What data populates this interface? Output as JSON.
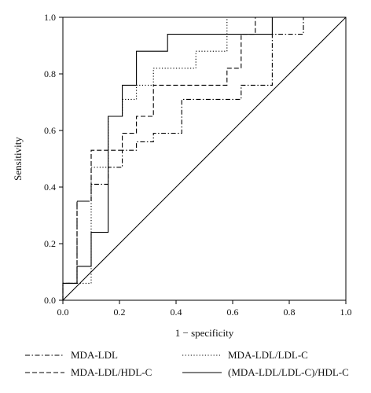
{
  "chart_data": {
    "type": "line",
    "xlabel": "1 − specificity",
    "ylabel": "Sensitivity",
    "xlim": [
      0,
      1
    ],
    "ylim": [
      0,
      1
    ],
    "x_ticks": [
      "0.0",
      "0.2",
      "0.4",
      "0.6",
      "0.8",
      "1.0"
    ],
    "y_ticks": [
      "0.0",
      "0.2",
      "0.4",
      "0.6",
      "0.8",
      "1.0"
    ],
    "grid": false,
    "legend_position": "bottom",
    "diagonal": {
      "x": [
        0,
        1
      ],
      "y": [
        0,
        1
      ],
      "color": "#000000"
    },
    "series": [
      {
        "name": "MDA-LDL",
        "dash": "dashdot",
        "color": "#000000",
        "x": [
          0,
          0,
          0.05,
          0.05,
          0.1,
          0.1,
          0.16,
          0.16,
          0.21,
          0.21,
          0.26,
          0.26,
          0.32,
          0.32,
          0.42,
          0.42,
          0.63,
          0.63,
          0.74,
          0.74,
          0.85,
          0.85,
          1.0
        ],
        "y": [
          0,
          0.06,
          0.06,
          0.35,
          0.35,
          0.41,
          0.41,
          0.47,
          0.47,
          0.53,
          0.53,
          0.56,
          0.56,
          0.59,
          0.59,
          0.71,
          0.71,
          0.76,
          0.76,
          0.94,
          0.94,
          1.0,
          1.0
        ]
      },
      {
        "name": "MDA-LDL/LDL-C",
        "dash": "dotted",
        "color": "#000000",
        "x": [
          0,
          0,
          0.05,
          0.05,
          0.1,
          0.1,
          0.16,
          0.16,
          0.21,
          0.21,
          0.26,
          0.26,
          0.32,
          0.32,
          0.47,
          0.47,
          0.58,
          0.58,
          1.0
        ],
        "y": [
          0,
          0.06,
          0.06,
          0.06,
          0.06,
          0.47,
          0.47,
          0.65,
          0.65,
          0.71,
          0.71,
          0.76,
          0.76,
          0.82,
          0.82,
          0.88,
          0.88,
          1.0,
          1.0
        ]
      },
      {
        "name": "MDA-LDL/HDL-C",
        "dash": "dashed",
        "color": "#000000",
        "x": [
          0,
          0,
          0.05,
          0.05,
          0.1,
          0.1,
          0.21,
          0.21,
          0.26,
          0.26,
          0.32,
          0.32,
          0.58,
          0.58,
          0.63,
          0.63,
          0.68,
          0.68,
          1.0
        ],
        "y": [
          0,
          0.06,
          0.06,
          0.35,
          0.35,
          0.53,
          0.53,
          0.59,
          0.59,
          0.65,
          0.65,
          0.76,
          0.76,
          0.82,
          0.82,
          0.94,
          0.94,
          1.0,
          1.0
        ]
      },
      {
        "name": "(MDA-LDL/LDL-C)/HDL-C",
        "dash": "solid",
        "color": "#000000",
        "x": [
          0,
          0,
          0.05,
          0.05,
          0.1,
          0.1,
          0.16,
          0.16,
          0.21,
          0.21,
          0.26,
          0.26,
          0.37,
          0.37,
          0.74,
          0.74,
          1.0
        ],
        "y": [
          0,
          0.06,
          0.06,
          0.12,
          0.12,
          0.24,
          0.24,
          0.65,
          0.65,
          0.76,
          0.76,
          0.88,
          0.88,
          0.94,
          0.94,
          1.0,
          1.0
        ]
      }
    ]
  }
}
